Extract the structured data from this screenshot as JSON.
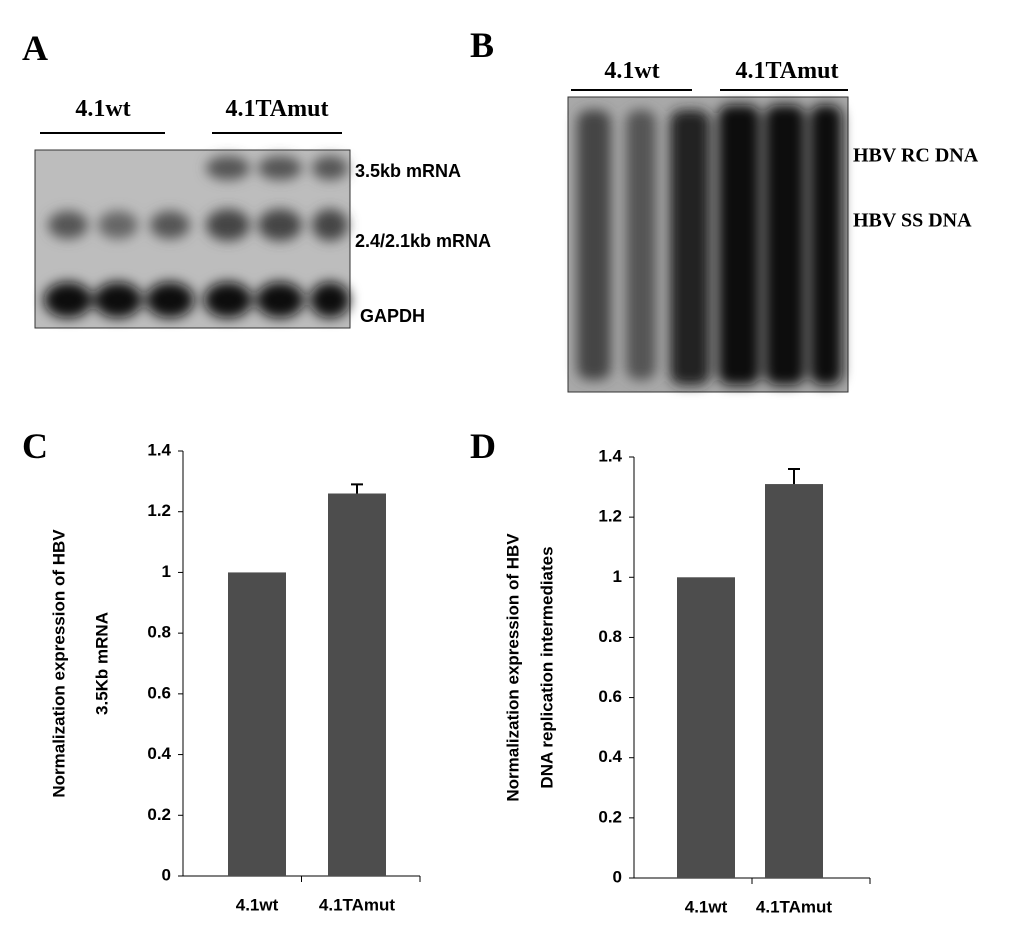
{
  "panel_labels": [
    "A",
    "B",
    "C",
    "D"
  ],
  "blots": [
    {
      "groups": [
        "4.1wt",
        "4.1TAmut"
      ],
      "bands": [
        "3.5kb mRNA",
        "2.4/2.1kb mRNA",
        "GAPDH"
      ]
    },
    {
      "groups": [
        "4.1wt",
        "4.1TAmut"
      ],
      "bands": [
        "HBV RC DNA",
        "HBV SS DNA"
      ]
    }
  ],
  "chart_data": [
    {
      "type": "bar",
      "ylabel": [
        "Normalization expression of HBV",
        "3.5Kb mRNA"
      ],
      "categories": [
        "4.1wt",
        "4.1TAmut"
      ],
      "values": [
        1,
        1.26
      ],
      "errors": [
        null,
        0.03
      ],
      "color": "#4d4d4d",
      "ylim": [
        0,
        1.4
      ],
      "yticks": [
        0,
        0.2,
        0.4,
        0.6,
        0.8,
        1,
        1.2,
        1.4
      ]
    },
    {
      "type": "bar",
      "ylabel": [
        "Normalization expression of HBV",
        "DNA replication intermediates"
      ],
      "categories": [
        "4.1wt",
        "4.1TAmut"
      ],
      "values": [
        1,
        1.31
      ],
      "errors": [
        null,
        0.05
      ],
      "color": "#4d4d4d",
      "ylim": [
        0,
        1.4
      ],
      "yticks": [
        0,
        0.2,
        0.4,
        0.6,
        0.8,
        1,
        1.2,
        1.4
      ]
    }
  ]
}
